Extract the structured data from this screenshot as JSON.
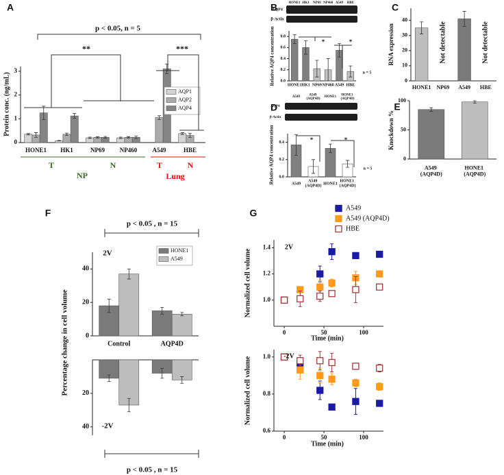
{
  "chart_data": [
    {
      "type": "bar",
      "panel": "A",
      "ylabel": "Protein conc. (ng/mL)",
      "categories": [
        "HONE1",
        "HK1",
        "NP69",
        "NP460",
        "A549",
        "HBE"
      ],
      "series": [
        {
          "name": "AQP1",
          "color": "#d4d4d4",
          "values": [
            0.35,
            0.08,
            0.2,
            0.2,
            null,
            0.38
          ],
          "errors": [
            0.03,
            0.01,
            0.03,
            0.03,
            null,
            0.04
          ]
        },
        {
          "name": "AQP2",
          "color": "#ababab",
          "values": [
            0.32,
            0.35,
            0.22,
            0.22,
            1.05,
            0.3
          ],
          "errors": [
            0.1,
            0.05,
            0.03,
            0.03,
            0.08,
            0.08
          ]
        },
        {
          "name": "AQP4",
          "color": "#858585",
          "values": [
            1.25,
            1.12,
            0.22,
            0.22,
            3.1,
            null
          ],
          "errors": [
            0.28,
            0.1,
            0.04,
            0.05,
            0.2,
            null
          ]
        }
      ],
      "ylim": [
        0,
        3.2
      ],
      "yticks": [
        0,
        1,
        2,
        3
      ],
      "legend": "right",
      "annotations": [
        {
          "text": "p < 0.05, n = 5"
        },
        {
          "text": "**"
        },
        {
          "text": "***"
        },
        {
          "text": "T",
          "color": "#3a6b1e"
        },
        {
          "text": "N",
          "color": "#3a6b1e"
        },
        {
          "text": "NP",
          "color": "#3a6b1e"
        },
        {
          "text": "T",
          "color": "#e01010"
        },
        {
          "text": "N",
          "color": "#e01010"
        },
        {
          "text": "Lung",
          "color": "#e01010"
        }
      ]
    },
    {
      "type": "bar",
      "panel": "B",
      "ylabel": "Relative AQP4 concentration",
      "categories": [
        "HONE1",
        "HK1",
        "NP69",
        "NP460",
        "A549",
        "HBE"
      ],
      "values": [
        0.75,
        0.6,
        0.22,
        0.2,
        0.55,
        0.17
      ],
      "errors": [
        0.08,
        0.12,
        0.15,
        0.2,
        0.12,
        0.1
      ],
      "colors": [
        "#808080",
        "#808080",
        "#c2c2c2",
        "#c2c2c2",
        "#808080",
        "#c2c2c2"
      ],
      "ylim": [
        0,
        0.9
      ],
      "yticks": [
        {
          "value": 0,
          "label": "0.0"
        },
        0.2,
        0.4,
        0.6,
        0.8
      ],
      "annotations": [
        {
          "text": "AQP4"
        },
        {
          "text": "β-Actin"
        },
        {
          "text": "*"
        },
        {
          "text": "*"
        },
        {
          "text": "n = 5"
        }
      ]
    },
    {
      "type": "bar",
      "panel": "C",
      "ylabel": "RNA expression",
      "categories": [
        "HONE1",
        "NP69",
        "A549",
        "HBE"
      ],
      "values": [
        35,
        null,
        41,
        null
      ],
      "errors": [
        4,
        null,
        5,
        null
      ],
      "colors": [
        "#bdbdbd",
        "#bdbdbd",
        "#7a7a7a",
        "#7a7a7a"
      ],
      "ylim": [
        0,
        48
      ],
      "yticks": [
        0,
        10,
        20,
        30,
        40
      ],
      "annotations": [
        {
          "text": "Not detectable"
        },
        {
          "text": "Not detectable"
        }
      ]
    },
    {
      "type": "bar",
      "panel": "D",
      "ylabel": "Relative AQP4 concentration",
      "categories": [
        "A549",
        "A549 (AQP4D)",
        "HONE1",
        "HONE1 (AQP4D)"
      ],
      "values": [
        0.37,
        0.12,
        0.33,
        0.15
      ],
      "errors": [
        0.12,
        0.08,
        0.05,
        0.04
      ],
      "colors": [
        "#808080",
        "#ffffff",
        "#808080",
        "#ffffff"
      ],
      "ylim": [
        0,
        0.5
      ],
      "yticks": [
        {
          "value": 0,
          "label": "0.0"
        },
        0.2,
        0.4
      ],
      "annotations": [
        {
          "text": "AQP4"
        },
        {
          "text": "β-Actin"
        },
        {
          "text": "*"
        },
        {
          "text": "*"
        },
        {
          "text": "n = 5"
        }
      ]
    },
    {
      "type": "bar",
      "panel": "E",
      "ylabel": "Knockdown %",
      "categories": [
        "A549 (AQP4D)",
        "HONE1 (AQP4D)"
      ],
      "values": [
        85,
        98
      ],
      "errors": [
        3,
        2
      ],
      "colors": [
        "#7a7a7a",
        "#bdbdbd"
      ],
      "ylim": [
        0,
        100
      ],
      "yticks": [
        0,
        50,
        100
      ]
    },
    {
      "type": "bar",
      "panel": "F",
      "ylabel": "Percentage change in cell volume",
      "categories": [
        "Control",
        "AQP4D"
      ],
      "series": [
        {
          "name": "HONE1",
          "color": "#7a7a7a",
          "values": [
            18,
            15
          ],
          "errors": [
            4,
            2
          ]
        },
        {
          "name": "A549",
          "color": "#bdbdbd",
          "values": [
            37,
            13
          ],
          "errors": [
            3,
            1
          ]
        }
      ],
      "ylim": [
        0,
        50
      ],
      "yticks": [
        0,
        20,
        40
      ],
      "legend": "upper right",
      "annotations": [
        {
          "text": "p < 0.05 , n = 15"
        },
        {
          "text": "2V"
        }
      ]
    },
    {
      "type": "bar",
      "yinvert": true,
      "series": [
        {
          "color": "#7a7a7a",
          "values": [
            11,
            8
          ],
          "errors": [
            2,
            3
          ]
        },
        {
          "color": "#bdbdbd",
          "values": [
            27,
            12
          ],
          "errors": [
            4,
            2
          ]
        }
      ],
      "ylim": [
        0,
        45
      ],
      "yticks": [
        20,
        40
      ],
      "annotations": [
        {
          "text": "-2V"
        },
        {
          "text": "p < 0.05 , n = 15"
        }
      ]
    },
    {
      "type": "scatter",
      "panel": "G",
      "xlabel": "Time (min)",
      "ylabel": "Normalized cell volume",
      "x": [
        0,
        20,
        45,
        60,
        90,
        120
      ],
      "series": [
        {
          "name": "A549",
          "color": "#1a1aa6",
          "marker": "filled",
          "values": [
            1.0,
            null,
            1.2,
            1.37,
            1.34,
            1.35
          ],
          "errors": [
            0.02,
            null,
            0.06,
            0.06,
            0.02,
            0.01
          ]
        },
        {
          "name": "A549 (AQP4D)",
          "color": "#ff9a1a",
          "marker": "filled",
          "values": [
            1.0,
            1.08,
            1.1,
            1.13,
            1.17,
            1.2
          ],
          "errors": [
            0.01,
            0.02,
            0.05,
            0.03,
            0.05,
            0.02
          ]
        },
        {
          "name": "HBE",
          "color": "#a33a3a",
          "marker": "open",
          "values": [
            1.0,
            1.01,
            1.03,
            1.05,
            1.08,
            1.1
          ],
          "errors": [
            0.01,
            0.06,
            0.04,
            0.02,
            0.1,
            0.02
          ]
        }
      ],
      "xlim": [
        -13,
        125
      ],
      "xticks": [
        0,
        50,
        100
      ],
      "ylim": [
        0.8,
        1.46
      ],
      "yticks": [
        {
          "value": 1,
          "label": "1.0"
        },
        {
          "value": 1.2,
          "label": "1.2"
        },
        {
          "value": 1.4,
          "label": "1.4"
        }
      ],
      "legend": "top",
      "annotations": [
        {
          "text": "2V"
        }
      ]
    },
    {
      "type": "scatter",
      "xlabel": "Time (min)",
      "ylabel": "Normalized cell volume",
      "x": [
        0,
        20,
        45,
        60,
        90,
        120
      ],
      "series": [
        {
          "color": "#1a1aa6",
          "marker": "filled",
          "values": [
            1.0,
            0.95,
            0.82,
            0.73,
            0.76,
            0.75
          ],
          "errors": [
            0.01,
            0.03,
            0.05,
            0.01,
            0.07,
            0.01
          ]
        },
        {
          "color": "#ff9a1a",
          "marker": "filled",
          "values": [
            1.0,
            0.93,
            0.9,
            0.88,
            0.86,
            0.84
          ],
          "errors": [
            0.01,
            0.05,
            0.04,
            0.03,
            0.02,
            0.02
          ]
        },
        {
          "color": "#a33a3a",
          "marker": "open",
          "values": [
            1.0,
            0.98,
            0.98,
            0.97,
            0.95,
            0.94
          ],
          "errors": [
            0.01,
            0.03,
            0.05,
            0.05,
            0.01,
            0.02
          ]
        }
      ],
      "xlim": [
        -13,
        125
      ],
      "xticks": [
        0,
        50,
        100
      ],
      "ylim": [
        0.6,
        1.04
      ],
      "yticks": [
        {
          "value": 0.6,
          "label": "0.6"
        },
        {
          "value": 0.8,
          "label": "0.8"
        },
        {
          "value": 1,
          "label": "1.0"
        }
      ],
      "annotations": [
        {
          "text": "-2V"
        }
      ]
    }
  ]
}
